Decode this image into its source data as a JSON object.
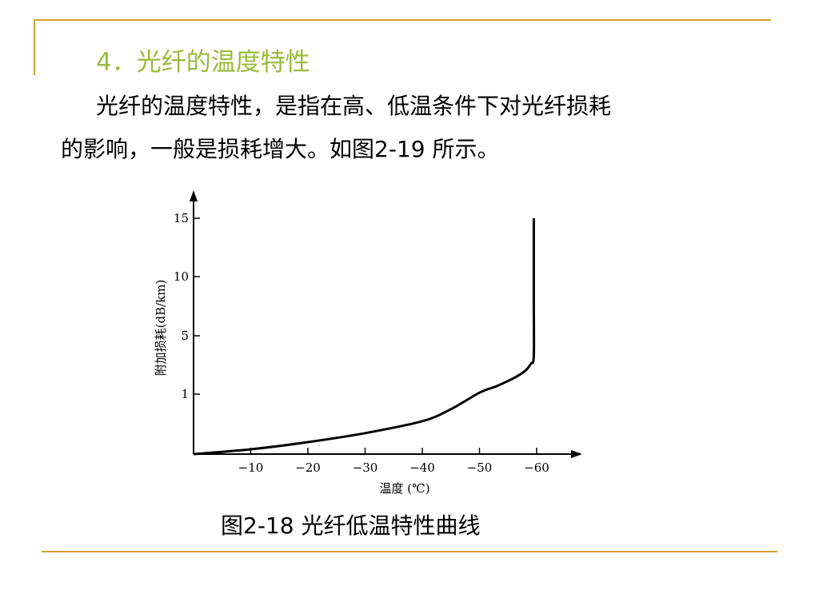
{
  "slide": {
    "title": "4．光纤的温度特性",
    "paragraph_line1": "光纤的温度特性，是指在高、低温条件下对光纤损耗",
    "paragraph_line2": "的影响，一般是损耗增大。如图2-19  所示。",
    "caption": "图2-18  光纤低温特性曲线",
    "accent_color": "#d4a02a",
    "title_color": "#9bbb3a"
  },
  "chart_data": {
    "type": "line",
    "title": "",
    "xlabel": "温度 (℃)",
    "ylabel": "附加损耗(dB/km)",
    "x_ticks": [
      "−10",
      "−20",
      "−30",
      "−40",
      "−50",
      "−60"
    ],
    "x_tick_values": [
      -10,
      -20,
      -30,
      -40,
      -50,
      -60
    ],
    "y_ticks": [
      "1",
      "5",
      "10",
      "15"
    ],
    "y_tick_values": [
      1,
      5,
      10,
      15
    ],
    "x_direction": "decreasing to the right",
    "grid": false,
    "legend": "none",
    "series": [
      {
        "x": [
          0,
          -10,
          -20,
          -30,
          -40,
          -45,
          -50,
          -53,
          -56,
          -58,
          -59,
          -59.5,
          -59.5,
          -59.5
        ],
        "y": [
          0,
          0.08,
          0.2,
          0.35,
          0.55,
          0.75,
          1.1,
          1.55,
          2.1,
          2.6,
          3.1,
          3.6,
          8,
          15
        ]
      }
    ]
  }
}
